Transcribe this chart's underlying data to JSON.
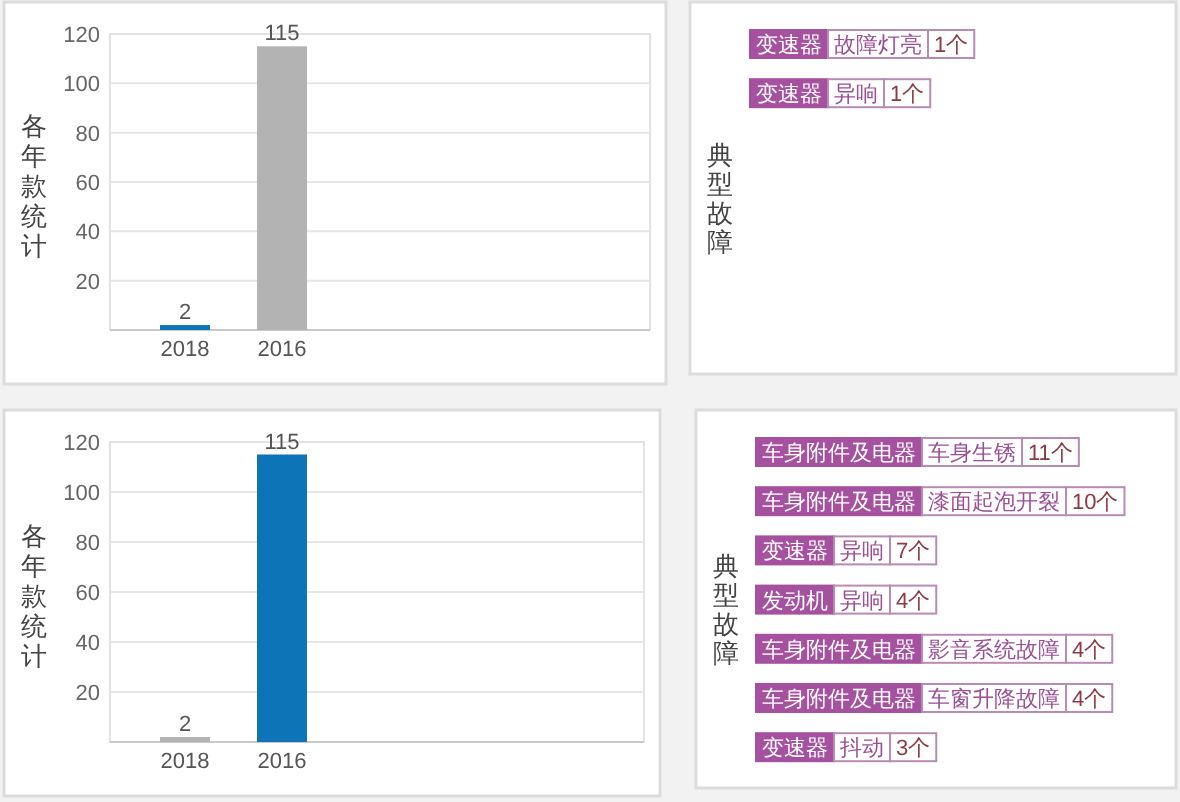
{
  "chart_data": [
    {
      "type": "bar",
      "ylabel": "各年款统计",
      "categories": [
        "2018",
        "2016"
      ],
      "values": [
        2,
        115
      ],
      "colors": [
        "#0e74b8",
        "#b3b3b3"
      ],
      "ylim": [
        0,
        120
      ],
      "yticks": [
        20,
        40,
        60,
        80,
        100,
        120
      ],
      "grid": "y",
      "data_labels": true
    },
    {
      "type": "other",
      "ylabel": "典型故障",
      "annotations": [
        "变速器",
        "故障灯亮",
        "1个",
        "变速器",
        "异响",
        "1个"
      ]
    },
    {
      "type": "bar",
      "ylabel": "各年款统计",
      "categories": [
        "2018",
        "2016"
      ],
      "values": [
        2,
        115
      ],
      "colors": [
        "#b3b3b3",
        "#0e74b8"
      ],
      "ylim": [
        0,
        120
      ],
      "yticks": [
        20,
        40,
        60,
        80,
        100,
        120
      ],
      "grid": "y",
      "data_labels": true
    },
    {
      "type": "other",
      "ylabel": "典型故障",
      "annotations": [
        "车身附件及电器",
        "车身生锈",
        "11个",
        "车身附件及电器",
        "漆面起泡开裂",
        "10个",
        "变速器",
        "异响",
        "7个",
        "发动机",
        "异响",
        "4个",
        "车身附件及电器",
        "影音系统故障",
        "4个",
        "车身附件及电器",
        "车窗升降故障",
        "4个",
        "变速器",
        "抖动",
        "3个"
      ]
    }
  ]
}
